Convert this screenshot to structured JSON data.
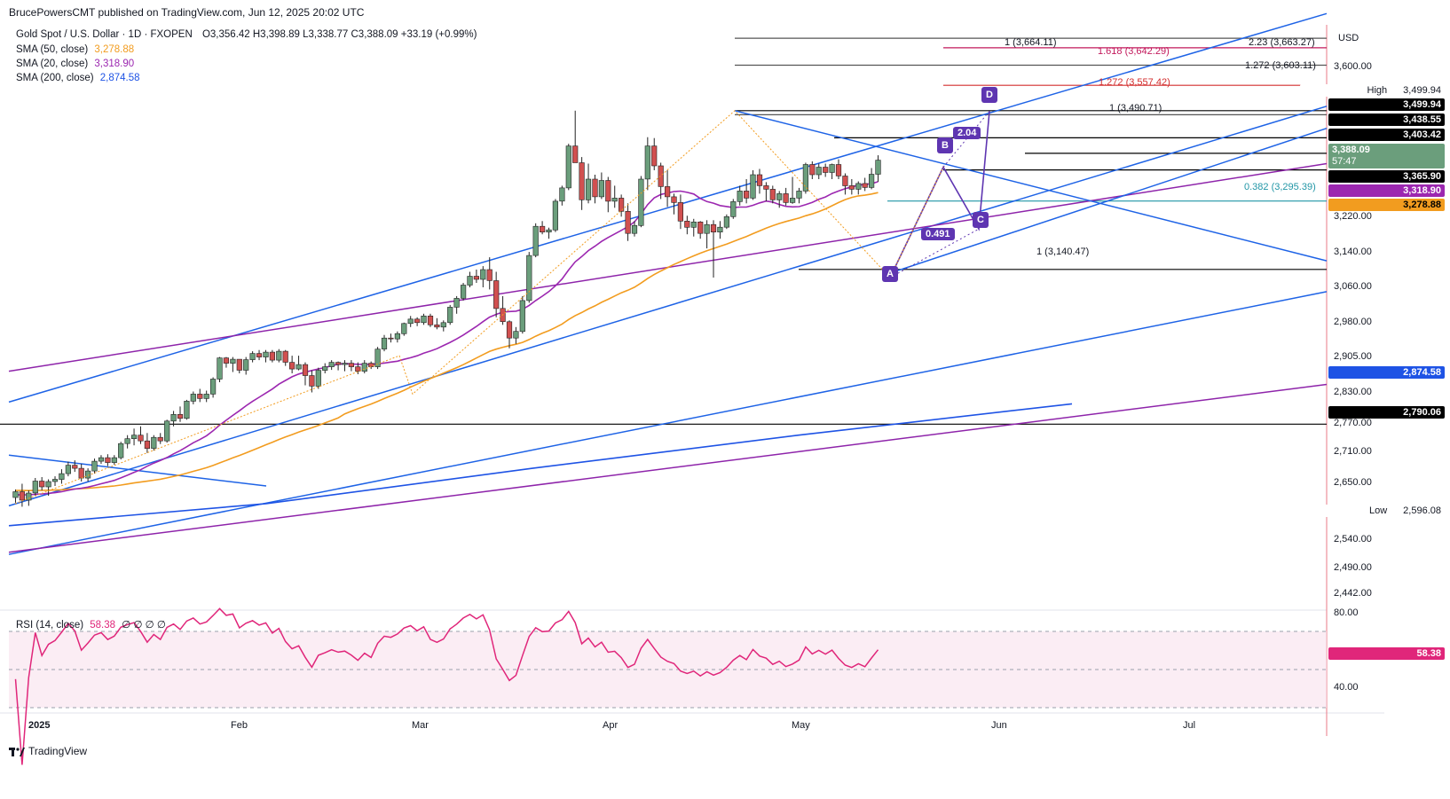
{
  "header": {
    "published": "BrucePowersCMT published on TradingView.com, Jun 12, 2025 20:02 UTC"
  },
  "legend": {
    "symbol": "Gold Spot / U.S. Dollar · 1D · FXOPEN",
    "ohlc": "O3,356.42 H3,398.89 L3,338.77 C3,388.09 +33.19 (+0.99%)",
    "sma50_label": "SMA (50, close)",
    "sma50_value": "3,278.88",
    "sma20_label": "SMA (20, close)",
    "sma20_value": "3,318.90",
    "sma200_label": "SMA (200, close)",
    "sma200_value": "2,874.58"
  },
  "rsi": {
    "label": "RSI (14, close)",
    "value": "58.38",
    "extra": "∅ ∅ ∅ ∅",
    "axis": [
      "80.00",
      "40.00"
    ],
    "tag": "58.38"
  },
  "footer": {
    "brand": "TradingView"
  },
  "colors": {
    "up": "#6b9e7c",
    "down": "#d15050",
    "sma50": "#f29c1f",
    "sma20": "#9c27b0",
    "sma200": "#1e53e5",
    "channel": "#1e63e6",
    "purple_line": "#8e24aa",
    "pattern": "#5e35b1"
  },
  "chart_data": {
    "type": "candlestick",
    "currency": "USD",
    "price_axis": [
      "3,600.00",
      "3,220.00",
      "3,140.00",
      "3,060.00",
      "2,980.00",
      "2,905.00",
      "2,830.00",
      "2,770.00",
      "2,710.00",
      "2,650.00",
      "2,540.00",
      "2,490.00",
      "2,442.00"
    ],
    "time_axis": [
      "2025",
      "Feb",
      "Mar",
      "Apr",
      "May",
      "Jun",
      "Jul"
    ],
    "price_tags": [
      {
        "label": "High",
        "value": "3,499.94",
        "bg": "#ffffff",
        "fg": "#131722"
      },
      {
        "value": "3,499.94",
        "bg": "#000000",
        "fg": "#ffffff"
      },
      {
        "value": "3,438.55",
        "bg": "#000000",
        "fg": "#ffffff"
      },
      {
        "value": "3,403.42",
        "bg": "#000000",
        "fg": "#ffffff"
      },
      {
        "value": "3,388.09",
        "sub": "57:47",
        "bg": "#6b9e7c",
        "fg": "#ffffff"
      },
      {
        "value": "3,365.90",
        "bg": "#000000",
        "fg": "#ffffff"
      },
      {
        "value": "3,318.90",
        "bg": "#9c27b0",
        "fg": "#ffffff"
      },
      {
        "value": "3,278.88",
        "bg": "#f29c1f",
        "fg": "#000000"
      },
      {
        "value": "2,874.58",
        "bg": "#1e53e5",
        "fg": "#ffffff"
      },
      {
        "value": "2,790.06",
        "bg": "#000000",
        "fg": "#ffffff"
      },
      {
        "label": "Low",
        "value": "2,596.08",
        "bg": "#ffffff",
        "fg": "#131722"
      }
    ],
    "fib_levels": [
      {
        "text": "1 (3,664.11)",
        "color": "#555555"
      },
      {
        "text": "2.23 (3,663.27)",
        "color": "#555555"
      },
      {
        "text": "1.618 (3,642.29)",
        "color": "#c2185b"
      },
      {
        "text": "1.272 (3,603.11)",
        "color": "#555555"
      },
      {
        "text": "1.272 (3,557.42)",
        "color": "#d32f2f"
      },
      {
        "text": "1 (3,490.71)",
        "color": "#555555"
      },
      {
        "text": "0.382 (3,295.39)",
        "color": "#2196a6"
      },
      {
        "text": "1 (3,140.47)",
        "color": "#555555"
      }
    ],
    "pattern_points": [
      "A",
      "B",
      "C",
      "D"
    ],
    "pattern_ratios": [
      "2.04",
      "0.491"
    ],
    "candles": [
      [
        2624,
        2642,
        2612,
        2637
      ],
      [
        2637,
        2655,
        2603,
        2618
      ],
      [
        2618,
        2640,
        2605,
        2634
      ],
      [
        2634,
        2668,
        2628,
        2661
      ],
      [
        2661,
        2670,
        2640,
        2648
      ],
      [
        2648,
        2665,
        2628,
        2660
      ],
      [
        2660,
        2672,
        2650,
        2665
      ],
      [
        2665,
        2688,
        2655,
        2678
      ],
      [
        2678,
        2705,
        2672,
        2697
      ],
      [
        2697,
        2708,
        2682,
        2690
      ],
      [
        2690,
        2700,
        2660,
        2668
      ],
      [
        2668,
        2690,
        2660,
        2684
      ],
      [
        2684,
        2712,
        2678,
        2706
      ],
      [
        2706,
        2720,
        2700,
        2714
      ],
      [
        2714,
        2722,
        2695,
        2703
      ],
      [
        2703,
        2720,
        2698,
        2714
      ],
      [
        2714,
        2750,
        2710,
        2746
      ],
      [
        2746,
        2765,
        2735,
        2757
      ],
      [
        2757,
        2780,
        2742,
        2765
      ],
      [
        2765,
        2785,
        2745,
        2752
      ],
      [
        2752,
        2770,
        2725,
        2735
      ],
      [
        2735,
        2765,
        2730,
        2760
      ],
      [
        2760,
        2770,
        2745,
        2752
      ],
      [
        2752,
        2800,
        2748,
        2797
      ],
      [
        2797,
        2820,
        2785,
        2812
      ],
      [
        2812,
        2830,
        2795,
        2803
      ],
      [
        2803,
        2845,
        2800,
        2842
      ],
      [
        2842,
        2864,
        2835,
        2858
      ],
      [
        2858,
        2870,
        2840,
        2848
      ],
      [
        2848,
        2866,
        2840,
        2858
      ],
      [
        2858,
        2896,
        2850,
        2892
      ],
      [
        2892,
        2942,
        2885,
        2940
      ],
      [
        2940,
        2942,
        2918,
        2928
      ],
      [
        2928,
        2942,
        2908,
        2937
      ],
      [
        2937,
        2935,
        2905,
        2912
      ],
      [
        2912,
        2942,
        2902,
        2936
      ],
      [
        2936,
        2955,
        2930,
        2950
      ],
      [
        2950,
        2958,
        2935,
        2942
      ],
      [
        2942,
        2958,
        2930,
        2953
      ],
      [
        2953,
        2958,
        2930,
        2935
      ],
      [
        2935,
        2960,
        2930,
        2955
      ],
      [
        2955,
        2958,
        2922,
        2930
      ],
      [
        2930,
        2945,
        2905,
        2915
      ],
      [
        2915,
        2945,
        2912,
        2925
      ],
      [
        2925,
        2930,
        2878,
        2900
      ],
      [
        2900,
        2912,
        2862,
        2876
      ],
      [
        2876,
        2918,
        2870,
        2912
      ],
      [
        2912,
        2928,
        2905,
        2920
      ],
      [
        2920,
        2935,
        2913,
        2930
      ],
      [
        2930,
        2932,
        2912,
        2925
      ],
      [
        2925,
        2935,
        2910,
        2928
      ],
      [
        2928,
        2935,
        2910,
        2920
      ],
      [
        2920,
        2930,
        2903,
        2910
      ],
      [
        2910,
        2935,
        2905,
        2928
      ],
      [
        2928,
        2932,
        2915,
        2920
      ],
      [
        2920,
        2965,
        2915,
        2960
      ],
      [
        2960,
        2992,
        2955,
        2985
      ],
      [
        2985,
        2995,
        2975,
        2983
      ],
      [
        2983,
        3000,
        2975,
        2995
      ],
      [
        2995,
        3020,
        2990,
        3018
      ],
      [
        3018,
        3035,
        3010,
        3028
      ],
      [
        3028,
        3032,
        3012,
        3020
      ],
      [
        3020,
        3040,
        3015,
        3035
      ],
      [
        3035,
        3040,
        3010,
        3015
      ],
      [
        3015,
        3030,
        3005,
        3010
      ],
      [
        3010,
        3025,
        3000,
        3020
      ],
      [
        3020,
        3060,
        3015,
        3055
      ],
      [
        3055,
        3080,
        3040,
        3075
      ],
      [
        3075,
        3110,
        3070,
        3105
      ],
      [
        3105,
        3135,
        3100,
        3125
      ],
      [
        3125,
        3140,
        3110,
        3118
      ],
      [
        3118,
        3148,
        3100,
        3140
      ],
      [
        3140,
        3168,
        3095,
        3115
      ],
      [
        3115,
        3135,
        3032,
        3052
      ],
      [
        3052,
        3080,
        3015,
        3022
      ],
      [
        3022,
        3025,
        2962,
        2985
      ],
      [
        2985,
        3010,
        2972,
        3000
      ],
      [
        3000,
        3080,
        2995,
        3070
      ],
      [
        3070,
        3180,
        3065,
        3172
      ],
      [
        3172,
        3245,
        3168,
        3238
      ],
      [
        3238,
        3250,
        3220,
        3225
      ],
      [
        3225,
        3235,
        3210,
        3230
      ],
      [
        3230,
        3300,
        3225,
        3295
      ],
      [
        3295,
        3330,
        3285,
        3325
      ],
      [
        3325,
        3425,
        3320,
        3420
      ],
      [
        3420,
        3500,
        3385,
        3382
      ],
      [
        3382,
        3395,
        3275,
        3298
      ],
      [
        3298,
        3380,
        3290,
        3345
      ],
      [
        3345,
        3355,
        3290,
        3305
      ],
      [
        3305,
        3360,
        3300,
        3342
      ],
      [
        3342,
        3350,
        3270,
        3295
      ],
      [
        3295,
        3330,
        3280,
        3302
      ],
      [
        3302,
        3310,
        3260,
        3272
      ],
      [
        3272,
        3290,
        3205,
        3222
      ],
      [
        3222,
        3250,
        3215,
        3240
      ],
      [
        3240,
        3352,
        3236,
        3345
      ],
      [
        3345,
        3440,
        3320,
        3420
      ],
      [
        3420,
        3438,
        3365,
        3375
      ],
      [
        3375,
        3382,
        3300,
        3328
      ],
      [
        3328,
        3365,
        3282,
        3305
      ],
      [
        3305,
        3312,
        3265,
        3292
      ],
      [
        3292,
        3310,
        3232,
        3250
      ],
      [
        3250,
        3262,
        3220,
        3236
      ],
      [
        3236,
        3255,
        3215,
        3248
      ],
      [
        3248,
        3250,
        3210,
        3222
      ],
      [
        3222,
        3252,
        3188,
        3242
      ],
      [
        3242,
        3252,
        3122,
        3225
      ],
      [
        3225,
        3250,
        3210,
        3236
      ],
      [
        3236,
        3265,
        3232,
        3260
      ],
      [
        3260,
        3300,
        3255,
        3294
      ],
      [
        3294,
        3330,
        3285,
        3318
      ],
      [
        3318,
        3345,
        3290,
        3302
      ],
      [
        3302,
        3365,
        3298,
        3355
      ],
      [
        3355,
        3368,
        3312,
        3330
      ],
      [
        3330,
        3338,
        3295,
        3322
      ],
      [
        3322,
        3330,
        3290,
        3298
      ],
      [
        3298,
        3318,
        3280,
        3312
      ],
      [
        3312,
        3325,
        3285,
        3292
      ],
      [
        3292,
        3350,
        3289,
        3302
      ],
      [
        3302,
        3325,
        3290,
        3318
      ],
      [
        3318,
        3382,
        3312,
        3378
      ],
      [
        3378,
        3385,
        3345,
        3355
      ],
      [
        3355,
        3380,
        3345,
        3372
      ],
      [
        3372,
        3380,
        3350,
        3360
      ],
      [
        3360,
        3380,
        3345,
        3378
      ],
      [
        3378,
        3390,
        3345,
        3352
      ],
      [
        3352,
        3358,
        3310,
        3330
      ],
      [
        3330,
        3345,
        3310,
        3322
      ],
      [
        3322,
        3340,
        3310,
        3335
      ],
      [
        3335,
        3348,
        3318,
        3326
      ],
      [
        3326,
        3370,
        3322,
        3356
      ],
      [
        3356,
        3399,
        3339,
        3388
      ]
    ],
    "sma200_points": [
      [
        0,
        2490
      ],
      [
        80,
        2510
      ],
      [
        160,
        2535
      ],
      [
        240,
        2565
      ],
      [
        320,
        2610
      ],
      [
        400,
        2655
      ],
      [
        480,
        2700
      ],
      [
        560,
        2740
      ],
      [
        640,
        2775
      ],
      [
        720,
        2805
      ],
      [
        780,
        2822
      ],
      [
        829,
        2838
      ]
    ]
  }
}
